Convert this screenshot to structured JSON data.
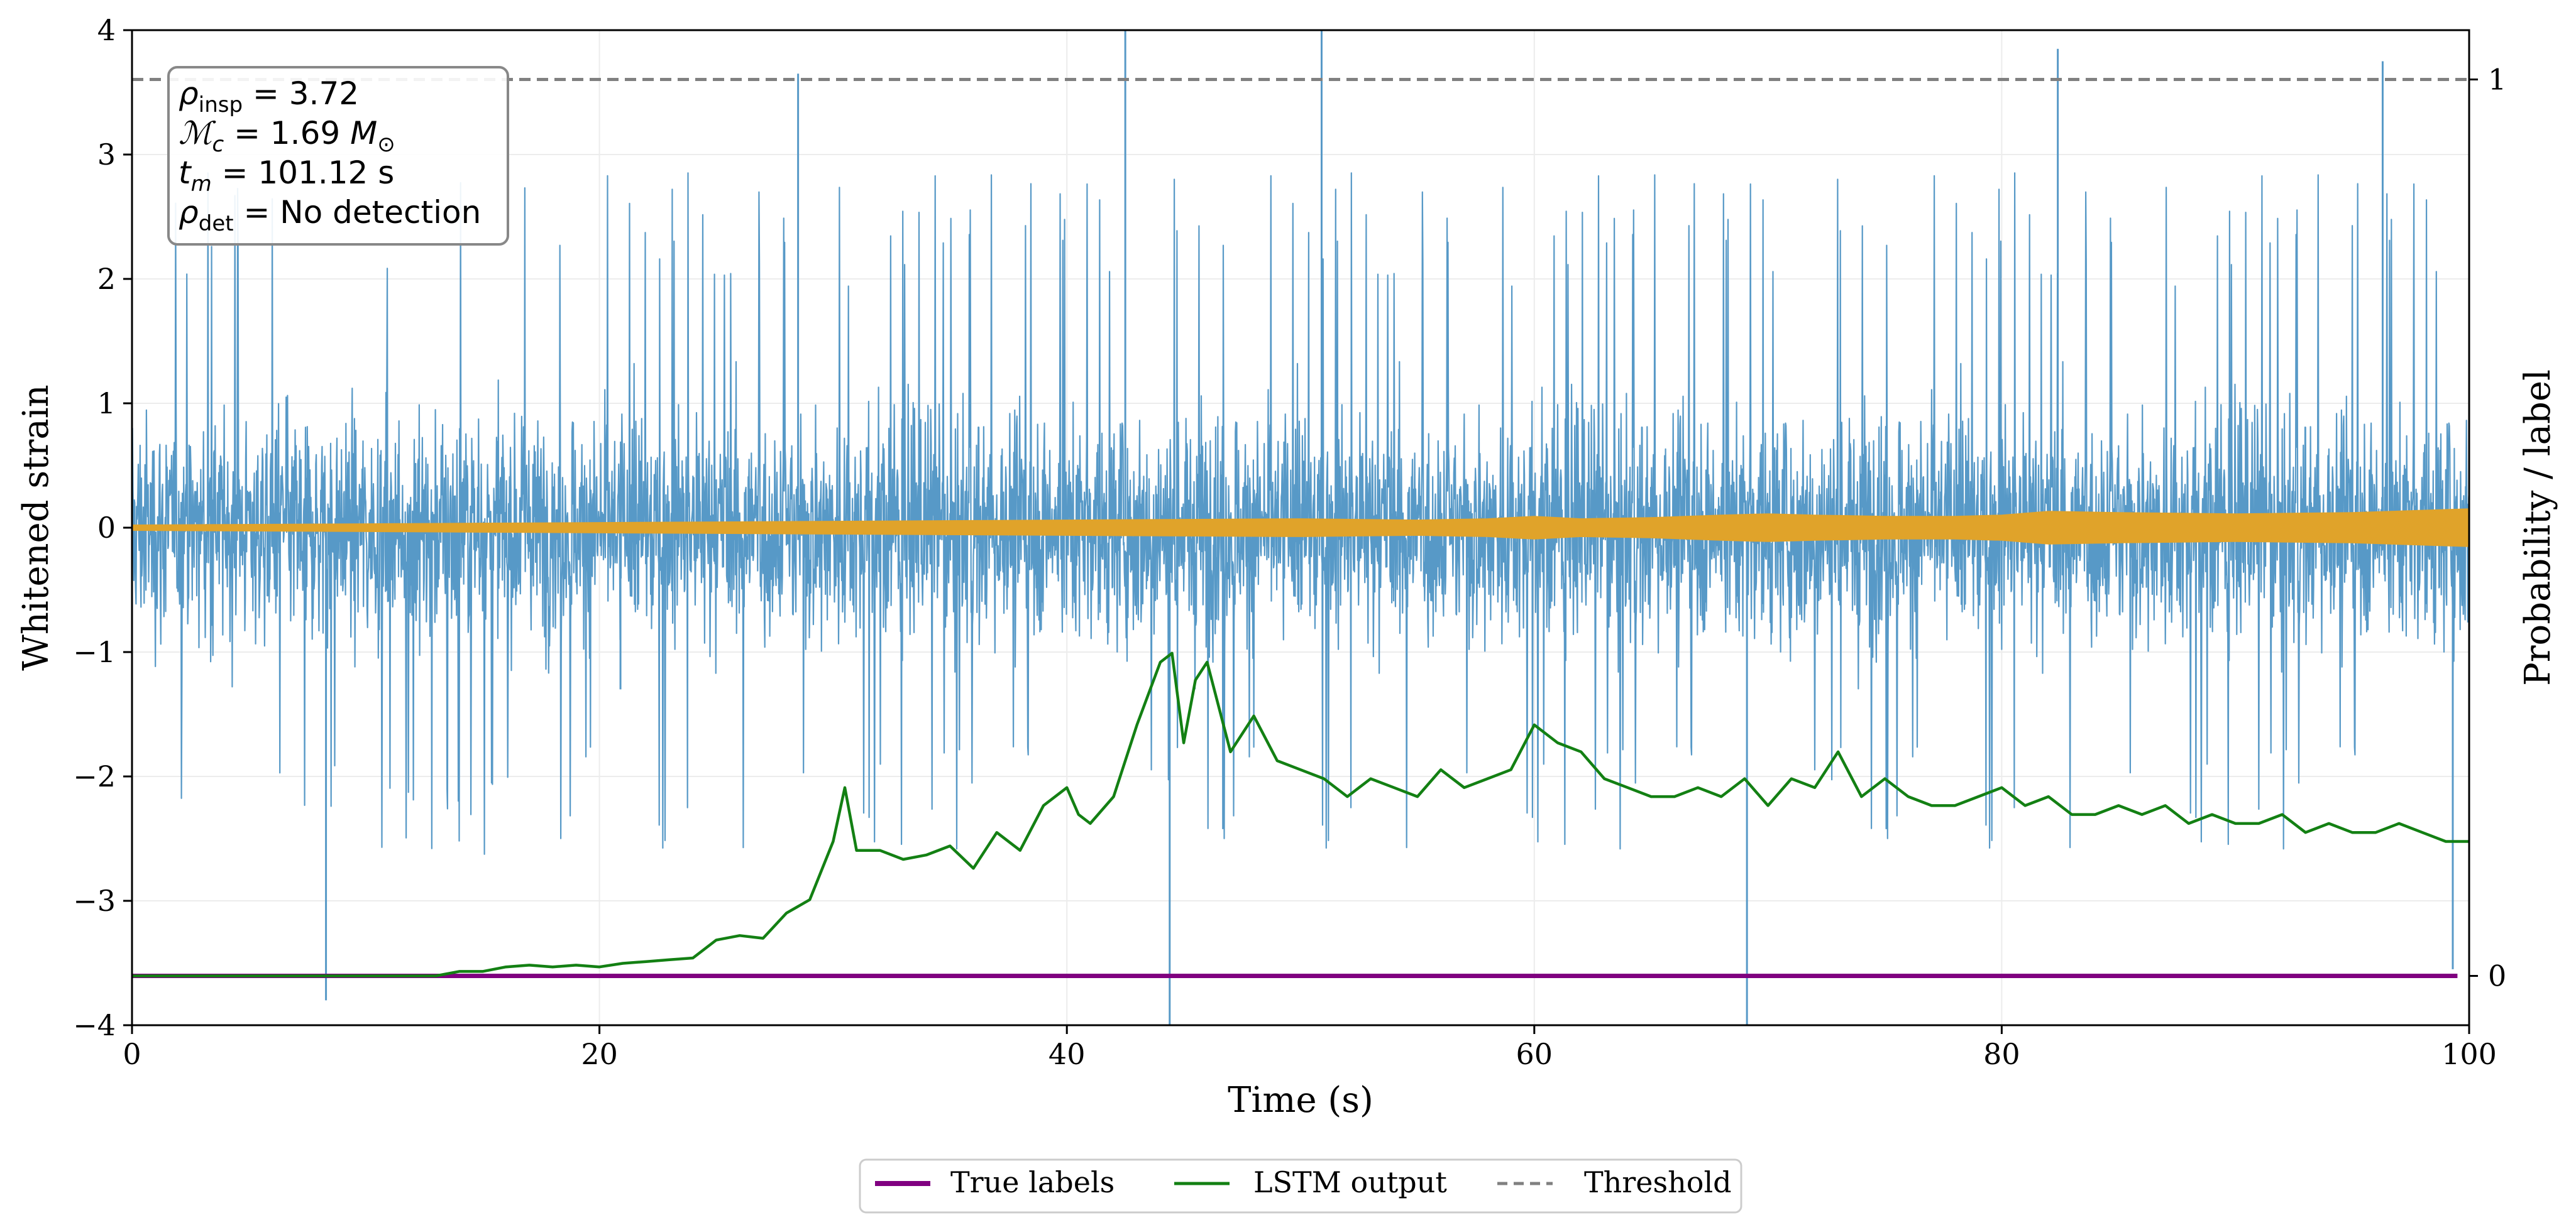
{
  "chart_data": {
    "type": "line",
    "xlabel": "Time (s)",
    "ylabel_left": "Whitened strain",
    "ylabel_right": "Probability / label",
    "xlim": [
      0,
      100
    ],
    "ylim_left": [
      -4,
      4
    ],
    "ylim_right": [
      -0.055,
      1.055
    ],
    "x_ticks": [
      0,
      20,
      40,
      60,
      80,
      100
    ],
    "y_ticks_left": [
      -4,
      -3,
      -2,
      -1,
      0,
      1,
      2,
      3,
      4
    ],
    "y_ticks_right": [
      0,
      1
    ],
    "grid": true,
    "legend_position": "bottom-center, outside plot",
    "annotation": {
      "rho_insp": "3.72",
      "chirp_mass": "1.69",
      "t_m": "101.12",
      "rho_det": "No detection"
    },
    "series": [
      {
        "name": "Whitened strain (noise)",
        "axis": "left",
        "color": "#5799c7",
        "kind": "noise",
        "typical_range": [
          -2.2,
          2.4
        ],
        "outliers": [
          {
            "x": 8.3,
            "y": -3.8
          },
          {
            "x": 20.9,
            "y": -1.3
          },
          {
            "x": 28.5,
            "y": 3.65
          },
          {
            "x": 42.5,
            "y": 4.0
          },
          {
            "x": 44.4,
            "y": -4.0
          },
          {
            "x": 50.9,
            "y": 4.0
          },
          {
            "x": 69.1,
            "y": -4.0
          },
          {
            "x": 82.4,
            "y": 3.85
          },
          {
            "x": 96.3,
            "y": 3.75
          },
          {
            "x": 99.3,
            "y": -3.55
          }
        ]
      },
      {
        "name": "Injected signal",
        "axis": "left",
        "color": "#e0a32a",
        "kind": "envelope",
        "x": [
          0,
          10,
          20,
          30,
          40,
          50,
          55,
          58,
          60,
          62,
          65,
          68,
          70,
          72,
          75,
          78,
          80,
          82,
          85,
          90,
          95,
          100
        ],
        "amplitude": [
          0.02,
          0.03,
          0.04,
          0.05,
          0.06,
          0.07,
          0.06,
          0.07,
          0.09,
          0.07,
          0.08,
          0.1,
          0.11,
          0.1,
          0.09,
          0.09,
          0.1,
          0.13,
          0.12,
          0.11,
          0.12,
          0.15
        ]
      },
      {
        "name": "True labels",
        "axis": "right",
        "color": "#800080",
        "x": [
          0,
          99.5
        ],
        "y": [
          0,
          0
        ]
      },
      {
        "name": "LSTM output",
        "axis": "right",
        "color": "#138013",
        "x": [
          0,
          13,
          14,
          15,
          16,
          17,
          18,
          19,
          20,
          21,
          22,
          23,
          24,
          25,
          26,
          27,
          28,
          29,
          30,
          30.5,
          31,
          32,
          33,
          34,
          35,
          36,
          37,
          38,
          39,
          40,
          40.5,
          41,
          42,
          43,
          44,
          44.5,
          45,
          45.5,
          46,
          47,
          48,
          49,
          50,
          51,
          52,
          53,
          54,
          55,
          56,
          57,
          58,
          59,
          60,
          61,
          62,
          63,
          64,
          65,
          66,
          67,
          68,
          69,
          70,
          71,
          72,
          73,
          74,
          75,
          76,
          77,
          78,
          79,
          80,
          81,
          82,
          83,
          84,
          85,
          86,
          87,
          88,
          89,
          90,
          91,
          92,
          93,
          94,
          95,
          96,
          97,
          98,
          99,
          100
        ],
        "y": [
          0.0,
          0.0,
          0.005,
          0.005,
          0.01,
          0.012,
          0.01,
          0.012,
          0.01,
          0.014,
          0.016,
          0.018,
          0.02,
          0.04,
          0.045,
          0.042,
          0.07,
          0.085,
          0.15,
          0.21,
          0.14,
          0.14,
          0.13,
          0.135,
          0.145,
          0.12,
          0.16,
          0.14,
          0.19,
          0.21,
          0.18,
          0.17,
          0.2,
          0.28,
          0.35,
          0.36,
          0.26,
          0.33,
          0.35,
          0.25,
          0.29,
          0.24,
          0.23,
          0.22,
          0.2,
          0.22,
          0.21,
          0.2,
          0.23,
          0.21,
          0.22,
          0.23,
          0.28,
          0.26,
          0.25,
          0.22,
          0.21,
          0.2,
          0.2,
          0.21,
          0.2,
          0.22,
          0.19,
          0.22,
          0.21,
          0.25,
          0.2,
          0.22,
          0.2,
          0.19,
          0.19,
          0.2,
          0.21,
          0.19,
          0.2,
          0.18,
          0.18,
          0.19,
          0.18,
          0.19,
          0.17,
          0.18,
          0.17,
          0.17,
          0.18,
          0.16,
          0.17,
          0.16,
          0.16,
          0.17,
          0.16,
          0.15,
          0.15
        ]
      },
      {
        "name": "Threshold",
        "axis": "right",
        "color": "#808080",
        "dashed": true,
        "x": [
          0,
          100
        ],
        "y": [
          1,
          1
        ]
      }
    ],
    "legend": [
      {
        "label": "True labels",
        "color": "#800080",
        "style": "solid-thick"
      },
      {
        "label": "LSTM output",
        "color": "#138013",
        "style": "solid"
      },
      {
        "label": "Threshold",
        "color": "#808080",
        "style": "dashed"
      }
    ]
  }
}
